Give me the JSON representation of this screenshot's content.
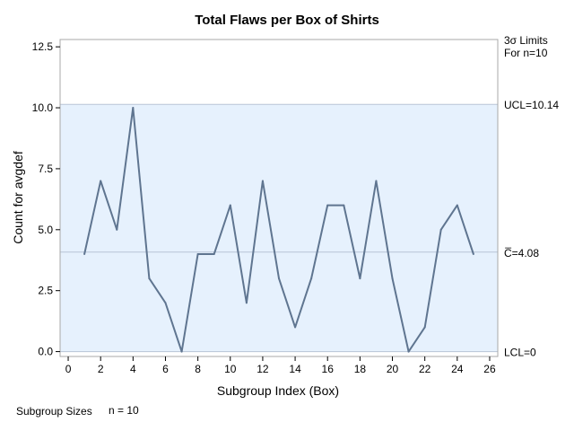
{
  "chart_data": {
    "type": "line",
    "title": "Total Flaws per Box of Shirts",
    "xlabel": "Subgroup Index (Box)",
    "ylabel": "Count for avgdef",
    "xlim": [
      -0.5,
      26.5
    ],
    "ylim": [
      -0.2,
      12.8
    ],
    "x_ticks": [
      0,
      2,
      4,
      6,
      8,
      10,
      12,
      14,
      16,
      18,
      20,
      22,
      24,
      26
    ],
    "x_tick_labels": [
      "0",
      "2",
      "4",
      "6",
      "8",
      "10",
      "12",
      "14",
      "16",
      "18",
      "20",
      "22",
      "24",
      "26"
    ],
    "y_ticks": [
      0,
      2.5,
      5,
      7.5,
      10,
      12.5
    ],
    "y_tick_labels": [
      "0.0",
      "2.5",
      "5.0",
      "7.5",
      "10.0",
      "12.5"
    ],
    "x": [
      1,
      2,
      3,
      4,
      5,
      6,
      7,
      8,
      9,
      10,
      11,
      12,
      13,
      14,
      15,
      16,
      17,
      18,
      19,
      20,
      21,
      22,
      23,
      24,
      25
    ],
    "values": [
      4,
      7,
      5,
      10,
      3,
      2,
      0,
      4,
      4,
      6,
      2,
      7,
      3,
      1,
      3,
      6,
      6,
      3,
      7,
      3,
      0,
      1,
      5,
      6,
      4
    ],
    "ucl": 10.14,
    "center": 4.08,
    "lcl": 0,
    "limits_heading": [
      "3σ Limits",
      "For n=10"
    ],
    "ucl_label": "UCL=10.14",
    "center_label": "C̅=4.08",
    "lcl_label": "LCL=0",
    "footer_label": "Subgroup Sizes",
    "footer_value": "n = 10",
    "colors": {
      "line": "#5f7590",
      "limit_band": "#e6f1fd",
      "limit_line": "#b8c4d6",
      "center_line": "#b8c4d6",
      "frame": "#a8a8a8"
    }
  }
}
